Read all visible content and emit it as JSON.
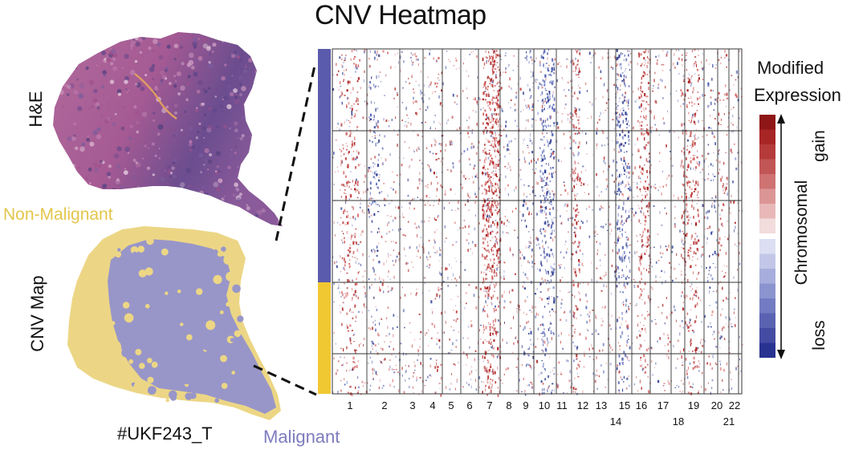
{
  "title": "CNV Heatmap",
  "left_panel": {
    "he_label": "H&E",
    "cnv_map_label": "CNV Map",
    "non_malignant_label": "Non-Malignant",
    "malignant_label": "Malignant",
    "sample_id": "#UKF243_T"
  },
  "legend": {
    "title_line1": "Modified",
    "title_line2": "Expression",
    "gain": "gain",
    "chromosomal": "Chromosomal",
    "loss": "loss"
  },
  "colors": {
    "malignant": "#5b5bad",
    "non_malignant": "#f0c832",
    "gain": "#9e1d1d",
    "loss": "#1f2f86",
    "map_malignant": "#9896c8",
    "map_non_malignant": "#ecd685",
    "tissue_pink": "#a55a93",
    "tissue_purple": "#6b4d8f"
  },
  "chromosomes": {
    "top_row": [
      "1",
      "2",
      "3",
      "4",
      "5",
      "6",
      "7",
      "8",
      "9",
      "10",
      "11",
      "12",
      "13",
      "15",
      "16",
      "17",
      "19",
      "20",
      "22"
    ],
    "bottom_row": [
      "14",
      "18",
      "21"
    ]
  }
}
